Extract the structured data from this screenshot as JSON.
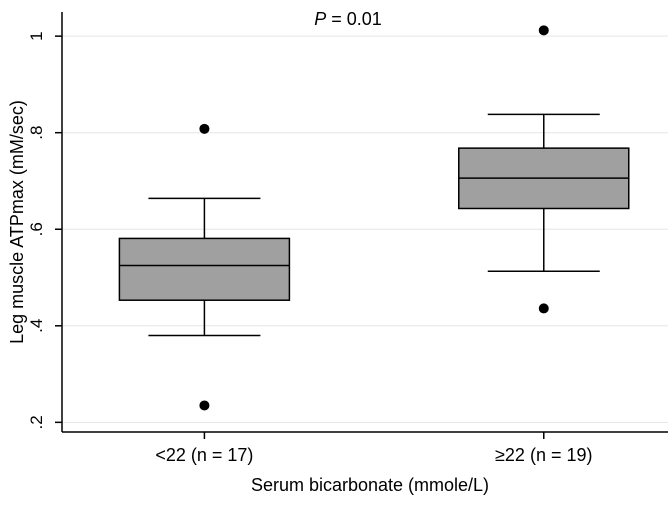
{
  "chart_data": {
    "type": "box",
    "title": "",
    "annotation": {
      "prefix": "P",
      "text": " = 0.01"
    },
    "xlabel": "Serum bicarbonate (mmole/L)",
    "ylabel": "Leg muscle ATPmax (mM/sec)",
    "ylim": [
      0.18,
      1.05
    ],
    "yticks": [
      0.2,
      0.4,
      0.6,
      0.8,
      1.0
    ],
    "ytick_labels": [
      ".2",
      ".4",
      ".6",
      ".8",
      "1"
    ],
    "grid": true,
    "categories": [
      "<22 (n = 17)",
      "≥22 (n = 19)"
    ],
    "boxes": [
      {
        "category": "<22 (n = 17)",
        "whisker_low": 0.38,
        "q1": 0.453,
        "median": 0.525,
        "q3": 0.581,
        "whisker_high": 0.664,
        "outliers": [
          0.808,
          0.235
        ]
      },
      {
        "category": "≥22 (n = 19)",
        "whisker_low": 0.513,
        "q1": 0.643,
        "median": 0.706,
        "q3": 0.768,
        "whisker_high": 0.838,
        "outliers": [
          1.012,
          0.436
        ]
      }
    ],
    "colors": {
      "box_fill": "#a0a0a0",
      "grid": "#e5e5e5",
      "line": "#000000"
    }
  }
}
